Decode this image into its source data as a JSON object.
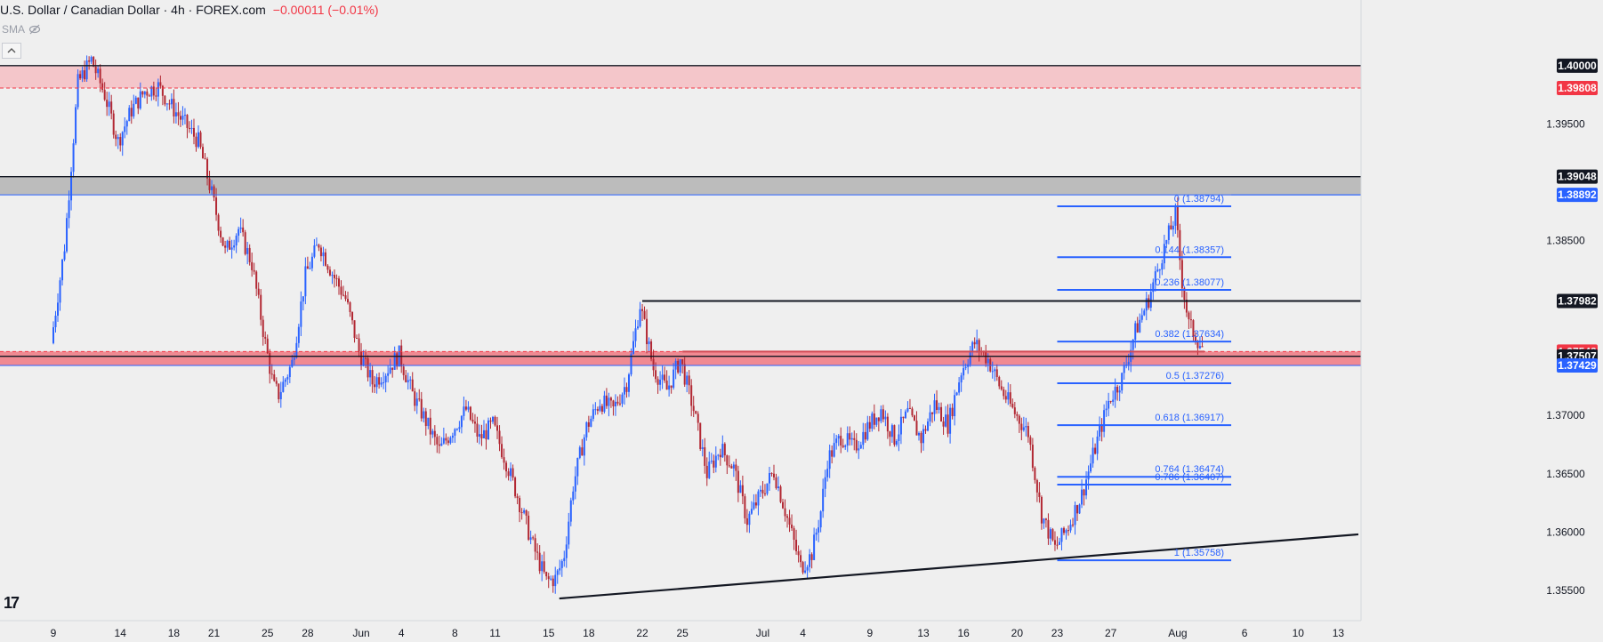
{
  "header": {
    "symbol_title": "U.S. Dollar / Canadian Dollar · 4h · FOREX.com",
    "change": "−0.00011 (−0.01%)"
  },
  "indicator": {
    "label": "SMA",
    "visibility_icon": "eye-crossed-icon"
  },
  "logo": {
    "text": "17"
  },
  "colors": {
    "background": "#efefef",
    "bull": "#2962ff",
    "bear": "#b22833",
    "fib": "#2962ff",
    "resistance_zone": "#f4c6ca",
    "support_zone": "#f08a92",
    "gray_zone": "#bcbcbc",
    "label_red": "#f23645",
    "label_black": "#131722"
  },
  "chart_data": {
    "type": "candlestick",
    "title": "U.S. Dollar / Canadian Dollar · 4h · FOREX.com",
    "ylim": [
      1.3524,
      1.4038
    ],
    "y_ticks": [
      "1.39500",
      "1.38500",
      "1.37000",
      "1.36500",
      "1.36000",
      "1.35500"
    ],
    "y_tick_values": [
      1.395,
      1.385,
      1.37,
      1.365,
      1.36,
      1.355
    ],
    "x_range_days": [
      0,
      97.5
    ],
    "x_ticks": [
      {
        "label": "9",
        "day": 0
      },
      {
        "label": "14",
        "day": 5
      },
      {
        "label": "18",
        "day": 9
      },
      {
        "label": "21",
        "day": 12
      },
      {
        "label": "25",
        "day": 16
      },
      {
        "label": "28",
        "day": 19
      },
      {
        "label": "Jun",
        "day": 23
      },
      {
        "label": "4",
        "day": 26
      },
      {
        "label": "8",
        "day": 30
      },
      {
        "label": "11",
        "day": 33
      },
      {
        "label": "15",
        "day": 37
      },
      {
        "label": "18",
        "day": 40
      },
      {
        "label": "22",
        "day": 44
      },
      {
        "label": "25",
        "day": 47
      },
      {
        "label": "Jul",
        "day": 53
      },
      {
        "label": "4",
        "day": 56
      },
      {
        "label": "9",
        "day": 61
      },
      {
        "label": "13",
        "day": 65
      },
      {
        "label": "16",
        "day": 68
      },
      {
        "label": "20",
        "day": 72
      },
      {
        "label": "23",
        "day": 75
      },
      {
        "label": "27",
        "day": 79
      },
      {
        "label": "Aug",
        "day": 84
      },
      {
        "label": "6",
        "day": 89
      },
      {
        "label": "10",
        "day": 93
      },
      {
        "label": "13",
        "day": 96
      }
    ],
    "price_path": [
      [
        0,
        1.3762
      ],
      [
        1,
        1.3845
      ],
      [
        2,
        1.3985
      ],
      [
        3,
        1.4005
      ],
      [
        4,
        1.3975
      ],
      [
        5,
        1.3935
      ],
      [
        6,
        1.3962
      ],
      [
        7,
        1.3978
      ],
      [
        8,
        1.3982
      ],
      [
        9,
        1.3965
      ],
      [
        10,
        1.395
      ],
      [
        11,
        1.3935
      ],
      [
        12,
        1.389
      ],
      [
        13,
        1.384
      ],
      [
        14,
        1.386
      ],
      [
        15,
        1.383
      ],
      [
        16,
        1.3762
      ],
      [
        16.6,
        1.3725
      ],
      [
        17,
        1.3718
      ],
      [
        18,
        1.3745
      ],
      [
        19,
        1.382
      ],
      [
        20,
        1.3848
      ],
      [
        21,
        1.3822
      ],
      [
        22,
        1.38
      ],
      [
        23,
        1.3755
      ],
      [
        24,
        1.3728
      ],
      [
        25,
        1.3738
      ],
      [
        26,
        1.3752
      ],
      [
        27,
        1.3718
      ],
      [
        28,
        1.3695
      ],
      [
        29,
        1.367
      ],
      [
        30,
        1.3688
      ],
      [
        31,
        1.3705
      ],
      [
        32,
        1.368
      ],
      [
        33,
        1.3692
      ],
      [
        34,
        1.366
      ],
      [
        35,
        1.3625
      ],
      [
        36,
        1.3588
      ],
      [
        37,
        1.3558
      ],
      [
        37.7,
        1.356
      ],
      [
        38.3,
        1.3578
      ],
      [
        39,
        1.364
      ],
      [
        40,
        1.369
      ],
      [
        41,
        1.3712
      ],
      [
        42,
        1.3705
      ],
      [
        43,
        1.3728
      ],
      [
        44,
        1.3795
      ],
      [
        45,
        1.374
      ],
      [
        46,
        1.3722
      ],
      [
        47,
        1.3748
      ],
      [
        48,
        1.3705
      ],
      [
        49,
        1.365
      ],
      [
        50,
        1.3672
      ],
      [
        51,
        1.3655
      ],
      [
        52,
        1.361
      ],
      [
        53,
        1.3632
      ],
      [
        54,
        1.3652
      ],
      [
        55,
        1.3612
      ],
      [
        56,
        1.357
      ],
      [
        56.8,
        1.358
      ],
      [
        57.5,
        1.3618
      ],
      [
        58,
        1.3662
      ],
      [
        59,
        1.3682
      ],
      [
        60,
        1.3672
      ],
      [
        61,
        1.369
      ],
      [
        62,
        1.3705
      ],
      [
        63,
        1.368
      ],
      [
        64,
        1.3702
      ],
      [
        65,
        1.368
      ],
      [
        66,
        1.371
      ],
      [
        67,
        1.3692
      ],
      [
        68,
        1.3738
      ],
      [
        69,
        1.3762
      ],
      [
        70,
        1.3748
      ],
      [
        71,
        1.3722
      ],
      [
        72,
        1.3702
      ],
      [
        73,
        1.3685
      ],
      [
        74,
        1.3615
      ],
      [
        75,
        1.3586
      ],
      [
        76,
        1.3605
      ],
      [
        77,
        1.3632
      ],
      [
        78,
        1.3672
      ],
      [
        79,
        1.3712
      ],
      [
        80,
        1.3732
      ],
      [
        81,
        1.3772
      ],
      [
        82,
        1.38
      ],
      [
        83,
        1.3838
      ],
      [
        84,
        1.3872
      ],
      [
        84.5,
        1.3815
      ],
      [
        85,
        1.3778
      ],
      [
        86,
        1.3758
      ]
    ],
    "horizontal_levels": [
      {
        "price": 1.4,
        "label": "1.40000",
        "label_style": "black"
      },
      {
        "price": 1.39808,
        "label": "1.39808",
        "label_style": "red"
      },
      {
        "price": 1.39048,
        "label": "1.39048",
        "label_style": "black"
      },
      {
        "price": 1.38892,
        "label": "1.38892",
        "label_style": "blue"
      },
      {
        "price": 1.37982,
        "label": "1.37982",
        "label_style": "black"
      },
      {
        "price": 1.37548,
        "label": "1.37548",
        "label_style": "red"
      },
      {
        "price": 1.37507,
        "label": "1.37507",
        "label_style": "black"
      },
      {
        "price": 1.37429,
        "label": "1.37429",
        "label_style": "blue"
      }
    ],
    "zones": [
      {
        "from": 1.39808,
        "to": 1.4,
        "kind": "resistance"
      },
      {
        "from": 1.38892,
        "to": 1.39048,
        "kind": "gray"
      },
      {
        "from": 1.37429,
        "to": 1.37548,
        "kind": "support"
      }
    ],
    "fibonacci": {
      "from_day": 75,
      "to_day": 88,
      "levels": [
        {
          "ratio": "0",
          "price": 1.38794,
          "label": "0 (1.38794)"
        },
        {
          "ratio": "0.144",
          "price": 1.38357,
          "label": "0.144 (1.38357)"
        },
        {
          "ratio": "0.236",
          "price": 1.38077,
          "label": "0.236 (1.38077)"
        },
        {
          "ratio": "0.382",
          "price": 1.37634,
          "label": "0.382 (1.37634)"
        },
        {
          "ratio": "0.5",
          "price": 1.37276,
          "label": "0.5 (1.37276)"
        },
        {
          "ratio": "0.618",
          "price": 1.36917,
          "label": "0.618 (1.36917)"
        },
        {
          "ratio": "0.764",
          "price": 1.36474,
          "label": "0.764 (1.36474)"
        },
        {
          "ratio": "0.786",
          "price": 1.36407,
          "label": "0.786 (1.36407)"
        },
        {
          "ratio": "1",
          "price": 1.35758,
          "label": "1 (1.35758)"
        }
      ]
    },
    "trendline": {
      "from": [
        37.8,
        1.3543
      ],
      "to": [
        97.5,
        1.3598
      ]
    },
    "segments": [
      {
        "from": [
          44,
          1.37982
        ],
        "to": [
          86,
          1.37982
        ],
        "color": "#131722"
      },
      {
        "from": [
          47,
          1.37548
        ],
        "to": [
          86,
          1.37548
        ],
        "color": "#d24a55"
      }
    ]
  }
}
